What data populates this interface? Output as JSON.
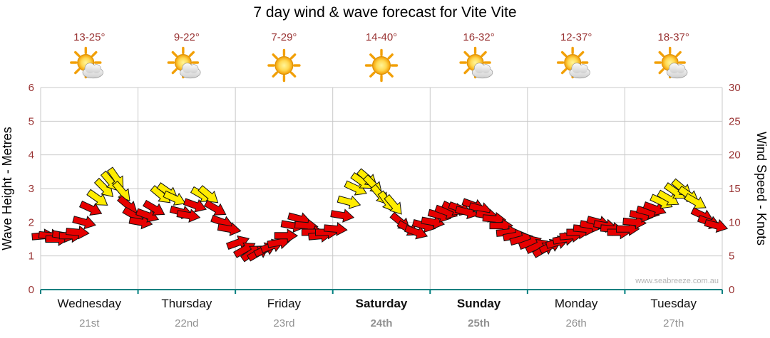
{
  "title": "7 day wind & wave forecast for Vite Vite",
  "watermark": "www.seabreeze.com.au",
  "colors": {
    "red_arrow": "#e60000",
    "yellow_arrow": "#ffec00",
    "arrow_outline": "#111111",
    "grid": "#c9c9c9",
    "baseline": "#008080",
    "axis_numbers": "#993333",
    "temp_text": "#993333",
    "day_name": "#111111",
    "date_text": "#909090",
    "watermark_text": "#b5b5b5"
  },
  "left_axis": {
    "label": "Wave Height - Metres",
    "min": 0,
    "max": 6,
    "step": 1
  },
  "right_axis": {
    "label": "Wind Speed - Knots",
    "min": 0,
    "max": 30,
    "step": 5
  },
  "days": [
    {
      "name": "Wednesday",
      "date": "21st",
      "temp": "13-25°",
      "icon": "sun-cloud",
      "bold": false
    },
    {
      "name": "Thursday",
      "date": "22nd",
      "temp": "9-22°",
      "icon": "sun-cloud",
      "bold": false
    },
    {
      "name": "Friday",
      "date": "23rd",
      "temp": "7-29°",
      "icon": "sun",
      "bold": false
    },
    {
      "name": "Saturday",
      "date": "24th",
      "temp": "14-40°",
      "icon": "sun",
      "bold": true
    },
    {
      "name": "Sunday",
      "date": "25th",
      "temp": "16-32°",
      "icon": "sun-cloud",
      "bold": true
    },
    {
      "name": "Monday",
      "date": "26th",
      "temp": "12-37°",
      "icon": "sun-cloud",
      "bold": false
    },
    {
      "name": "Tuesday",
      "date": "27th",
      "temp": "18-37°",
      "icon": "sun-cloud",
      "bold": false
    }
  ],
  "chart_data": {
    "type": "scatter",
    "marker": "wind-arrow",
    "x_unit": "days from Wednesday 00:00 (0-7)",
    "y_unit": "knots (right axis); wave-metres = knots / 5 (left axis)",
    "ylim_knots": [
      0,
      30
    ],
    "ylim_metres": [
      0,
      6
    ],
    "grid": true,
    "point_format": "[time_days, speed_knots, direction_deg, color r|y]",
    "points": [
      [
        0.03,
        8,
        85,
        "r"
      ],
      [
        0.1,
        8,
        95,
        "r"
      ],
      [
        0.17,
        7.5,
        90,
        "r"
      ],
      [
        0.24,
        8,
        100,
        "r"
      ],
      [
        0.31,
        8,
        90,
        "r"
      ],
      [
        0.38,
        8.5,
        95,
        "r"
      ],
      [
        0.45,
        10,
        105,
        "r"
      ],
      [
        0.52,
        12,
        115,
        "r"
      ],
      [
        0.59,
        13.5,
        125,
        "y"
      ],
      [
        0.66,
        15,
        135,
        "y"
      ],
      [
        0.72,
        16,
        140,
        "y"
      ],
      [
        0.78,
        16.5,
        145,
        "y"
      ],
      [
        0.84,
        14.5,
        140,
        "y"
      ],
      [
        0.9,
        12.5,
        130,
        "r"
      ],
      [
        0.96,
        11,
        120,
        "r"
      ],
      [
        1.03,
        10,
        100,
        "r"
      ],
      [
        1.1,
        11,
        110,
        "r"
      ],
      [
        1.17,
        12,
        120,
        "r"
      ],
      [
        1.24,
        14,
        130,
        "y"
      ],
      [
        1.31,
        14.5,
        125,
        "y"
      ],
      [
        1.38,
        13.5,
        115,
        "y"
      ],
      [
        1.45,
        11.5,
        105,
        "r"
      ],
      [
        1.52,
        11,
        100,
        "r"
      ],
      [
        1.59,
        12.5,
        110,
        "r"
      ],
      [
        1.66,
        14,
        120,
        "y"
      ],
      [
        1.73,
        14,
        130,
        "y"
      ],
      [
        1.8,
        12,
        120,
        "r"
      ],
      [
        1.87,
        10,
        110,
        "r"
      ],
      [
        1.94,
        9,
        100,
        "r"
      ],
      [
        2.03,
        7,
        70,
        "r"
      ],
      [
        2.1,
        6,
        60,
        "r"
      ],
      [
        2.17,
        5.5,
        55,
        "r"
      ],
      [
        2.24,
        5.5,
        60,
        "r"
      ],
      [
        2.31,
        6,
        65,
        "r"
      ],
      [
        2.38,
        6.5,
        70,
        "r"
      ],
      [
        2.45,
        7,
        80,
        "r"
      ],
      [
        2.52,
        8,
        90,
        "r"
      ],
      [
        2.59,
        9.5,
        100,
        "r"
      ],
      [
        2.66,
        10.5,
        105,
        "r"
      ],
      [
        2.73,
        9.5,
        95,
        "r"
      ],
      [
        2.8,
        8.5,
        90,
        "r"
      ],
      [
        2.87,
        8,
        85,
        "r"
      ],
      [
        2.94,
        8.5,
        90,
        "r"
      ],
      [
        3.03,
        9,
        95,
        "r"
      ],
      [
        3.1,
        11,
        100,
        "r"
      ],
      [
        3.17,
        13,
        105,
        "y"
      ],
      [
        3.24,
        15,
        115,
        "y"
      ],
      [
        3.3,
        16,
        125,
        "y"
      ],
      [
        3.36,
        16.5,
        130,
        "y"
      ],
      [
        3.42,
        15.5,
        135,
        "y"
      ],
      [
        3.49,
        14,
        140,
        "y"
      ],
      [
        3.56,
        13,
        145,
        "y"
      ],
      [
        3.63,
        12.5,
        140,
        "y"
      ],
      [
        3.7,
        10,
        130,
        "r"
      ],
      [
        3.78,
        9,
        120,
        "r"
      ],
      [
        3.86,
        8.5,
        110,
        "r"
      ],
      [
        3.94,
        9.5,
        105,
        "r"
      ],
      [
        4.03,
        10,
        100,
        "r"
      ],
      [
        4.1,
        11,
        105,
        "r"
      ],
      [
        4.17,
        11.5,
        110,
        "r"
      ],
      [
        4.24,
        12,
        115,
        "r"
      ],
      [
        4.31,
        12,
        110,
        "r"
      ],
      [
        4.38,
        11.5,
        105,
        "r"
      ],
      [
        4.45,
        12.5,
        110,
        "r"
      ],
      [
        4.52,
        12,
        105,
        "r"
      ],
      [
        4.59,
        11,
        100,
        "r"
      ],
      [
        4.66,
        10.5,
        95,
        "r"
      ],
      [
        4.73,
        9.5,
        90,
        "r"
      ],
      [
        4.8,
        8.5,
        85,
        "r"
      ],
      [
        4.87,
        8,
        80,
        "r"
      ],
      [
        4.94,
        7.5,
        75,
        "r"
      ],
      [
        5.03,
        7,
        70,
        "r"
      ],
      [
        5.1,
        6.5,
        65,
        "r"
      ],
      [
        5.17,
        6,
        60,
        "r"
      ],
      [
        5.24,
        6.5,
        65,
        "r"
      ],
      [
        5.31,
        7,
        75,
        "r"
      ],
      [
        5.38,
        7.5,
        80,
        "r"
      ],
      [
        5.45,
        8,
        85,
        "r"
      ],
      [
        5.52,
        8.5,
        90,
        "r"
      ],
      [
        5.59,
        9,
        95,
        "r"
      ],
      [
        5.66,
        9.5,
        100,
        "r"
      ],
      [
        5.73,
        10,
        105,
        "r"
      ],
      [
        5.8,
        9.5,
        100,
        "r"
      ],
      [
        5.87,
        9,
        95,
        "r"
      ],
      [
        5.94,
        8.5,
        90,
        "r"
      ],
      [
        6.03,
        9,
        90,
        "r"
      ],
      [
        6.1,
        10,
        95,
        "r"
      ],
      [
        6.17,
        11,
        100,
        "r"
      ],
      [
        6.24,
        11.5,
        105,
        "r"
      ],
      [
        6.31,
        12,
        110,
        "r"
      ],
      [
        6.38,
        13,
        115,
        "y"
      ],
      [
        6.45,
        13.5,
        120,
        "y"
      ],
      [
        6.52,
        14.5,
        125,
        "y"
      ],
      [
        6.59,
        15,
        130,
        "y"
      ],
      [
        6.66,
        14,
        125,
        "y"
      ],
      [
        6.73,
        13,
        120,
        "y"
      ],
      [
        6.8,
        11,
        115,
        "r"
      ],
      [
        6.87,
        10,
        110,
        "r"
      ],
      [
        6.94,
        9.5,
        105,
        "r"
      ]
    ]
  }
}
